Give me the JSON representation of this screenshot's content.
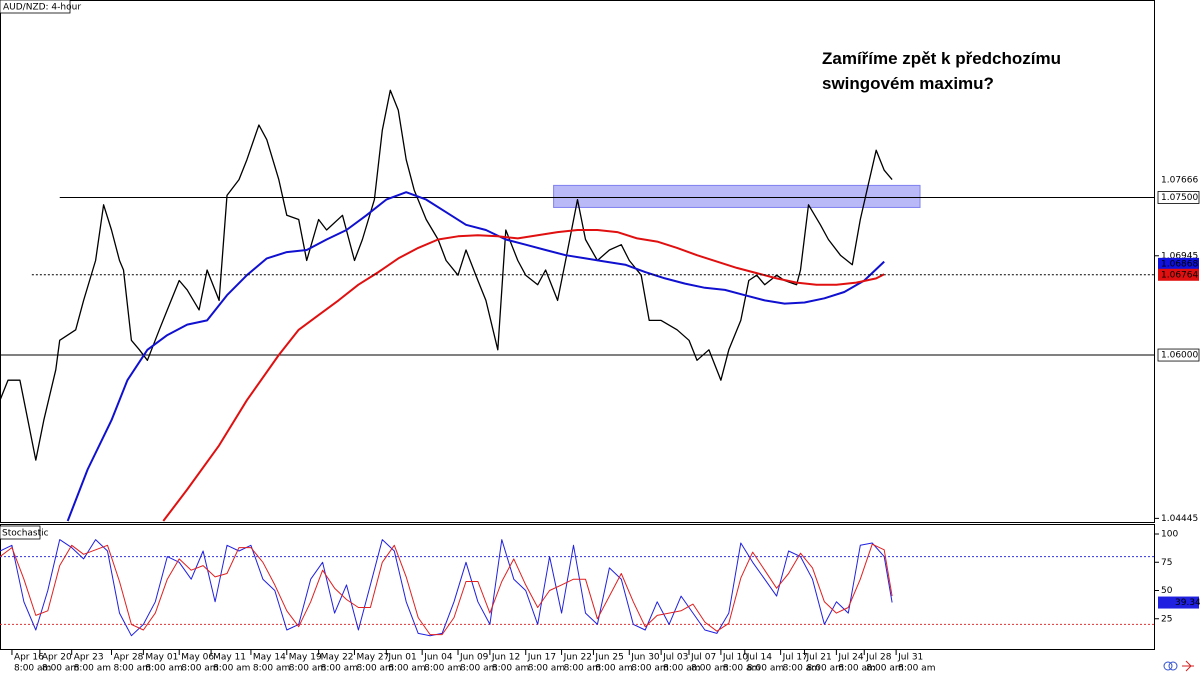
{
  "chart_data": [
    {
      "type": "line",
      "title": "AUD/NZD: 4-hour",
      "annotation": [
        "Zamíříme zpět k předchozímu",
        "swingovém maximu?"
      ],
      "xlim": [
        0,
        290
      ],
      "ylim": [
        1.0442,
        1.0938
      ],
      "yticks": [
        1.06945,
        1.04445
      ],
      "levels": [
        {
          "value": 1.075,
          "label": "1.07500",
          "from_x": 15
        },
        {
          "value": 1.06,
          "label": "1.06000",
          "from_x": 0
        }
      ],
      "price_tags": [
        {
          "value": 1.07666,
          "color": "#ffffff",
          "text_color": "#000000"
        },
        {
          "value": 1.06868,
          "color": "#1010e0",
          "text_color": "#ffffff"
        },
        {
          "value": 1.06764,
          "color": "#e01010",
          "text_color": "#ffffff",
          "line_from_x": 8
        }
      ],
      "zone": [
        1.07405,
        1.07615
      ],
      "zone_x": [
        139,
        231
      ],
      "zone_color": "#8080f0",
      "series": [
        {
          "color": "#000000",
          "width": 1.3,
          "x": [
            0,
            2,
            5,
            7,
            9,
            11,
            14,
            15,
            19,
            21,
            24,
            26,
            28,
            30,
            31,
            33,
            35,
            37,
            40,
            42,
            45,
            47,
            50,
            52,
            55,
            57,
            60,
            62,
            65,
            67,
            70,
            72,
            75,
            77,
            80,
            82,
            86,
            89,
            91,
            94,
            96,
            98,
            100,
            102,
            104,
            107,
            110,
            112,
            115,
            117,
            120,
            122,
            125,
            127,
            130,
            132,
            135,
            137,
            140,
            142,
            145,
            147,
            150,
            153,
            156,
            158,
            161,
            163,
            166,
            170,
            173,
            175,
            178,
            181,
            183,
            186,
            188,
            190,
            192,
            195,
            197,
            200,
            201,
            203,
            206,
            208,
            211,
            214,
            216,
            218,
            220,
            222,
            224
          ],
          "values": [
            1.0557,
            1.0576,
            1.0576,
            1.0538,
            1.05,
            1.0538,
            1.0586,
            1.0614,
            1.0624,
            1.0652,
            1.069,
            1.0743,
            1.0719,
            1.069,
            1.0681,
            1.0614,
            1.0605,
            1.0595,
            1.0624,
            1.0643,
            1.0671,
            1.0662,
            1.0643,
            1.0681,
            1.0652,
            1.0752,
            1.0767,
            1.0786,
            1.0819,
            1.0805,
            1.0767,
            1.0733,
            1.0729,
            1.069,
            1.0729,
            1.0719,
            1.0733,
            1.069,
            1.071,
            1.0748,
            1.0814,
            1.0852,
            1.0833,
            1.0786,
            1.0757,
            1.0729,
            1.071,
            1.069,
            1.0676,
            1.07,
            1.0671,
            1.0652,
            1.0605,
            1.0719,
            1.069,
            1.0676,
            1.0667,
            1.0681,
            1.0652,
            1.069,
            1.0748,
            1.071,
            1.069,
            1.07,
            1.0705,
            1.069,
            1.0676,
            1.0633,
            1.0633,
            1.0624,
            1.0614,
            1.0595,
            1.0605,
            1.0576,
            1.0605,
            1.0633,
            1.0671,
            1.0676,
            1.0667,
            1.0676,
            1.0671,
            1.0667,
            1.0681,
            1.0743,
            1.0724,
            1.071,
            1.0695,
            1.0686,
            1.0729,
            1.0762,
            1.0795,
            1.0776,
            1.0767
          ]
        },
        {
          "color": "#1010d0",
          "width": 2,
          "x": [
            17,
            22,
            28,
            32,
            37,
            42,
            47,
            52,
            57,
            62,
            67,
            72,
            77,
            82,
            87,
            92,
            97,
            102,
            107,
            112,
            117,
            122,
            127,
            132,
            137,
            142,
            147,
            152,
            157,
            162,
            167,
            172,
            177,
            182,
            187,
            192,
            197,
            202,
            207,
            212,
            217,
            222
          ],
          "values": [
            1.0442,
            1.0491,
            1.0538,
            1.0576,
            1.0605,
            1.0619,
            1.0629,
            1.0633,
            1.0657,
            1.0676,
            1.0692,
            1.0698,
            1.07,
            1.071,
            1.0719,
            1.0733,
            1.0748,
            1.0755,
            1.0748,
            1.0736,
            1.0724,
            1.0719,
            1.071,
            1.0705,
            1.07,
            1.0695,
            1.0692,
            1.0689,
            1.0686,
            1.0679,
            1.0673,
            1.0668,
            1.0664,
            1.0662,
            1.0657,
            1.0652,
            1.0649,
            1.065,
            1.0654,
            1.066,
            1.0671,
            1.0689
          ]
        },
        {
          "color": "#e01010",
          "width": 2,
          "x": [
            41,
            47,
            55,
            62,
            70,
            75,
            80,
            85,
            90,
            95,
            100,
            105,
            110,
            115,
            120,
            125,
            130,
            135,
            140,
            145,
            150,
            155,
            160,
            165,
            170,
            175,
            180,
            185,
            190,
            195,
            200,
            205,
            210,
            215,
            220,
            222
          ],
          "values": [
            1.0442,
            1.0472,
            1.0514,
            1.0557,
            1.06,
            1.0624,
            1.0638,
            1.0652,
            1.0667,
            1.0679,
            1.0692,
            1.0702,
            1.071,
            1.0713,
            1.0714,
            1.0713,
            1.0711,
            1.0714,
            1.0717,
            1.0719,
            1.0719,
            1.0717,
            1.0711,
            1.0708,
            1.0702,
            1.0695,
            1.0689,
            1.0683,
            1.0678,
            1.0673,
            1.0669,
            1.0667,
            1.0667,
            1.0669,
            1.0673,
            1.0677
          ]
        }
      ]
    },
    {
      "type": "line",
      "title": "Stochastic",
      "xlim": [
        0,
        290
      ],
      "ylim": [
        0,
        100
      ],
      "yticks": [
        25,
        50,
        75,
        100
      ],
      "levels": [
        {
          "value": 80,
          "color": "#3030e0"
        },
        {
          "value": 20,
          "color": "#e03030"
        }
      ],
      "xticks": [
        {
          "value": 3,
          "label": "Apr 16"
        },
        {
          "value": 10,
          "label": "Apr 20"
        },
        {
          "value": 18,
          "label": "Apr 23"
        },
        {
          "value": 28,
          "label": "Apr 28"
        },
        {
          "value": 36,
          "label": "May 01"
        },
        {
          "value": 45,
          "label": "May 06"
        },
        {
          "value": 53,
          "label": "May 11"
        },
        {
          "value": 63,
          "label": "May 14"
        },
        {
          "value": 72,
          "label": "May 19"
        },
        {
          "value": 80,
          "label": "May 22"
        },
        {
          "value": 89,
          "label": "May 27"
        },
        {
          "value": 97,
          "label": "Jun 01"
        },
        {
          "value": 106,
          "label": "Jun 04"
        },
        {
          "value": 115,
          "label": "Jun 09"
        },
        {
          "value": 123,
          "label": "Jun 12"
        },
        {
          "value": 132,
          "label": "Jun 17"
        },
        {
          "value": 141,
          "label": "Jun 22"
        },
        {
          "value": 149,
          "label": "Jun 25"
        },
        {
          "value": 158,
          "label": "Jun 30"
        },
        {
          "value": 166,
          "label": "Jul 03"
        },
        {
          "value": 173,
          "label": "Jul 07"
        },
        {
          "value": 181,
          "label": "Jul 10"
        },
        {
          "value": 187,
          "label": "Jul 14"
        },
        {
          "value": 196,
          "label": "Jul 17"
        },
        {
          "value": 202,
          "label": "Jul 21"
        },
        {
          "value": 210,
          "label": "Jul 24"
        },
        {
          "value": 217,
          "label": "Jul 28"
        },
        {
          "value": 225,
          "label": "Jul 31"
        }
      ],
      "xtick_times": [
        "8:00 am",
        "8:00 am",
        "8:00 am",
        "8:00 am",
        "8:00 am",
        "8:00 am",
        "8:00 am",
        "8:00 am",
        "8:00 am",
        "8:00 am",
        "8:00 am",
        "8:00 am",
        "8:00 am",
        "8:00 am",
        "8:00 am",
        "8:00 am",
        "8:00 am",
        "8:00 am",
        "8:00 am",
        "8:00 am",
        "8:00 am",
        "8:00 am",
        "8:00 am",
        "8:00 am",
        "8:00 am",
        "8:00 am",
        "8:00 am",
        "8:00 am"
      ],
      "series": [
        {
          "color": "#2020e0",
          "width": 1,
          "tag": true,
          "x": [
            0,
            3,
            6,
            9,
            12,
            15,
            18,
            21,
            24,
            27,
            30,
            33,
            36,
            39,
            42,
            45,
            48,
            51,
            54,
            57,
            60,
            63,
            66,
            69,
            72,
            75,
            78,
            81,
            84,
            87,
            90,
            93,
            96,
            99,
            102,
            105,
            108,
            111,
            114,
            117,
            120,
            123,
            126,
            129,
            132,
            135,
            138,
            141,
            144,
            147,
            150,
            153,
            156,
            159,
            162,
            165,
            168,
            171,
            174,
            177,
            180,
            183,
            186,
            189,
            192,
            195,
            198,
            201,
            204,
            207,
            210,
            213,
            216,
            219,
            222,
            224
          ],
          "values": [
            85,
            90,
            40,
            15,
            50,
            95,
            88,
            78,
            95,
            85,
            30,
            10,
            20,
            40,
            80,
            75,
            60,
            85,
            40,
            90,
            85,
            90,
            60,
            50,
            15,
            20,
            60,
            75,
            30,
            55,
            15,
            55,
            95,
            85,
            40,
            12,
            10,
            12,
            40,
            75,
            40,
            20,
            95,
            60,
            50,
            20,
            80,
            30,
            90,
            30,
            20,
            70,
            60,
            20,
            15,
            40,
            20,
            45,
            30,
            15,
            12,
            30,
            92,
            75,
            60,
            45,
            85,
            80,
            60,
            20,
            40,
            30,
            90,
            92,
            80,
            39.34
          ]
        },
        {
          "color": "#e02020",
          "width": 1,
          "x": [
            0,
            3,
            6,
            9,
            12,
            15,
            18,
            21,
            24,
            27,
            30,
            33,
            36,
            39,
            42,
            45,
            48,
            51,
            54,
            57,
            60,
            63,
            66,
            69,
            72,
            75,
            78,
            81,
            84,
            87,
            90,
            93,
            96,
            99,
            102,
            105,
            108,
            111,
            114,
            117,
            120,
            123,
            126,
            129,
            132,
            135,
            138,
            141,
            144,
            147,
            150,
            153,
            156,
            159,
            162,
            165,
            168,
            171,
            174,
            177,
            180,
            183,
            186,
            189,
            192,
            195,
            198,
            201,
            204,
            207,
            210,
            213,
            216,
            219,
            222,
            224
          ],
          "values": [
            80,
            88,
            60,
            28,
            32,
            72,
            90,
            82,
            86,
            90,
            58,
            20,
            15,
            30,
            60,
            78,
            68,
            72,
            62,
            65,
            88,
            88,
            75,
            55,
            32,
            18,
            40,
            68,
            52,
            42,
            35,
            35,
            75,
            90,
            62,
            26,
            11,
            11,
            26,
            58,
            58,
            30,
            58,
            78,
            55,
            35,
            50,
            55,
            60,
            60,
            25,
            45,
            65,
            40,
            18,
            28,
            30,
            32,
            38,
            22,
            14,
            21,
            61,
            84,
            68,
            52,
            65,
            83,
            70,
            40,
            30,
            35,
            60,
            91,
            86,
            45
          ]
        }
      ]
    }
  ]
}
